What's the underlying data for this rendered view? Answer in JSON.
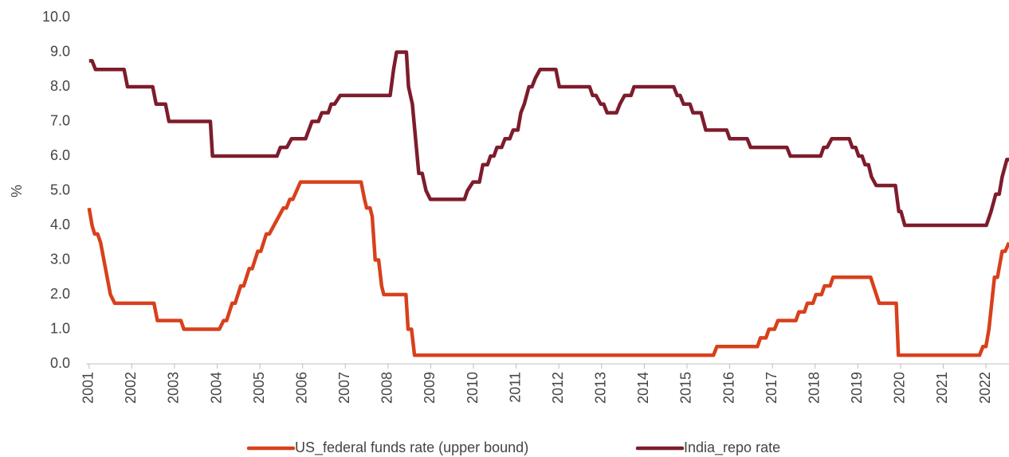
{
  "chart_data": {
    "type": "line",
    "y_label": "%",
    "xlim": [
      2000.93,
      2022.54
    ],
    "xticks": [
      2001,
      2002,
      2003,
      2004,
      2005,
      2006,
      2007,
      2008,
      2009,
      2010,
      2011,
      2012,
      2013,
      2014,
      2015,
      2016,
      2017,
      2018,
      2019,
      2020,
      2021,
      2022
    ],
    "ylim": [
      0,
      10
    ],
    "yticks": [
      {
        "value": 0,
        "label": "0.0"
      },
      {
        "value": 1,
        "label": "1.0"
      },
      {
        "value": 2,
        "label": "2.0"
      },
      {
        "value": 3,
        "label": "3.0"
      },
      {
        "value": 4,
        "label": "4.0"
      },
      {
        "value": 5,
        "label": "5.0"
      },
      {
        "value": 6,
        "label": "6.0"
      },
      {
        "value": 7,
        "label": "7.0"
      },
      {
        "value": 8,
        "label": "8.0"
      },
      {
        "value": 9,
        "label": "9.0"
      },
      {
        "value": 10,
        "label": "10.0"
      }
    ],
    "grid": false,
    "legend": "bottom",
    "series": [
      {
        "name": "US_federal funds rate (upper bound)",
        "color": "#d8401c",
        "x": [
          2001.0,
          2001.07,
          2001.13,
          2001.2,
          2001.27,
          2001.5,
          2001.6,
          2002.52,
          2002.6,
          2003.15,
          2003.22,
          2004.05,
          2004.15,
          2004.22,
          2004.35,
          2004.42,
          2004.55,
          2004.62,
          2004.75,
          2004.82,
          2004.95,
          2005.02,
          2005.15,
          2005.22,
          2005.55,
          2005.62,
          2005.7,
          2005.77,
          2005.95,
          2007.37,
          2007.45,
          2007.5,
          2007.58,
          2007.63,
          2007.7,
          2007.78,
          2007.85,
          2007.9,
          2008.42,
          2008.47,
          2008.55,
          2008.62,
          2015.62,
          2015.7,
          2016.65,
          2016.72,
          2016.85,
          2016.92,
          2017.05,
          2017.13,
          2017.55,
          2017.62,
          2017.75,
          2017.82,
          2017.95,
          2018.02,
          2018.15,
          2018.22,
          2018.35,
          2018.42,
          2019.3,
          2019.5,
          2019.9,
          2019.95,
          2021.85,
          2021.93,
          2022.0,
          2022.07,
          2022.2,
          2022.27,
          2022.38,
          2022.45,
          2022.54
        ],
        "values": [
          4.5,
          4.0,
          3.75,
          3.75,
          3.5,
          2.0,
          1.75,
          1.75,
          1.25,
          1.25,
          1.0,
          1.0,
          1.25,
          1.25,
          1.75,
          1.75,
          2.25,
          2.25,
          2.75,
          2.75,
          3.25,
          3.25,
          3.75,
          3.75,
          4.5,
          4.5,
          4.75,
          4.75,
          5.25,
          5.25,
          4.75,
          4.5,
          4.5,
          4.25,
          3.0,
          3.0,
          2.25,
          2.0,
          2.0,
          1.0,
          1.0,
          0.25,
          0.25,
          0.5,
          0.5,
          0.75,
          0.75,
          1.0,
          1.0,
          1.25,
          1.25,
          1.5,
          1.5,
          1.75,
          1.75,
          2.0,
          2.0,
          2.25,
          2.25,
          2.5,
          2.5,
          1.75,
          1.75,
          0.25,
          0.25,
          0.5,
          0.5,
          1.0,
          2.5,
          2.5,
          3.25,
          3.25,
          3.5
        ]
      },
      {
        "name": "India_repo rate",
        "color": "#7d1c2c",
        "x": [
          2001.0,
          2001.07,
          2001.15,
          2001.82,
          2001.9,
          2002.49,
          2002.57,
          2002.79,
          2002.87,
          2003.84,
          2003.89,
          2005.4,
          2005.48,
          2005.63,
          2005.74,
          2006.07,
          2006.22,
          2006.37,
          2006.45,
          2006.6,
          2006.67,
          2006.75,
          2006.88,
          2008.05,
          2008.13,
          2008.2,
          2008.43,
          2008.48,
          2008.57,
          2008.72,
          2008.8,
          2008.89,
          2008.99,
          2009.79,
          2009.86,
          2009.99,
          2010.14,
          2010.22,
          2010.33,
          2010.4,
          2010.48,
          2010.55,
          2010.66,
          2010.74,
          2010.85,
          2010.93,
          2011.04,
          2011.11,
          2011.19,
          2011.3,
          2011.37,
          2011.45,
          2011.56,
          2011.93,
          2012.01,
          2012.72,
          2012.79,
          2012.87,
          2012.98,
          2013.05,
          2013.13,
          2013.35,
          2013.43,
          2013.54,
          2013.69,
          2013.76,
          2014.69,
          2014.77,
          2014.84,
          2014.92,
          2015.07,
          2015.14,
          2015.33,
          2015.44,
          2015.93,
          2016.0,
          2016.41,
          2016.49,
          2017.34,
          2017.42,
          2018.13,
          2018.2,
          2018.28,
          2018.39,
          2018.8,
          2018.87,
          2018.95,
          2019.02,
          2019.1,
          2019.17,
          2019.25,
          2019.32,
          2019.43,
          2019.88,
          2019.96,
          2020.01,
          2020.1,
          2022.01,
          2022.12,
          2022.23,
          2022.31,
          2022.38,
          2022.49,
          2022.54
        ],
        "values": [
          8.75,
          8.75,
          8.5,
          8.5,
          8.0,
          8.0,
          7.5,
          7.5,
          7.0,
          7.0,
          6.0,
          6.0,
          6.25,
          6.25,
          6.5,
          6.5,
          7.0,
          7.0,
          7.25,
          7.25,
          7.5,
          7.5,
          7.75,
          7.75,
          8.5,
          9.0,
          9.0,
          8.0,
          7.5,
          5.5,
          5.5,
          5.0,
          4.75,
          4.75,
          5.0,
          5.25,
          5.25,
          5.75,
          5.75,
          6.0,
          6.0,
          6.25,
          6.25,
          6.5,
          6.5,
          6.75,
          6.75,
          7.25,
          7.5,
          8.0,
          8.0,
          8.25,
          8.5,
          8.5,
          8.0,
          8.0,
          7.75,
          7.75,
          7.5,
          7.5,
          7.25,
          7.25,
          7.5,
          7.75,
          7.75,
          8.0,
          8.0,
          7.75,
          7.75,
          7.5,
          7.5,
          7.25,
          7.25,
          6.75,
          6.75,
          6.5,
          6.5,
          6.25,
          6.25,
          6.0,
          6.0,
          6.25,
          6.25,
          6.5,
          6.5,
          6.25,
          6.25,
          6.0,
          6.0,
          5.75,
          5.75,
          5.4,
          5.15,
          5.15,
          4.4,
          4.4,
          4.0,
          4.0,
          4.4,
          4.9,
          4.9,
          5.4,
          5.9,
          5.9
        ]
      }
    ]
  }
}
